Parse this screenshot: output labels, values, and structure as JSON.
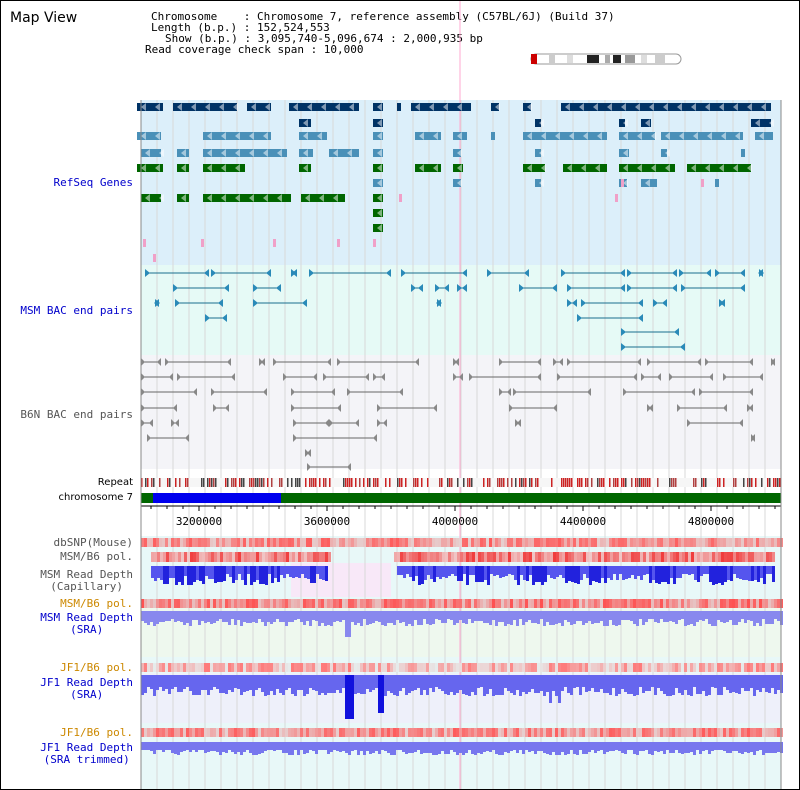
{
  "app": {
    "title": "Map View"
  },
  "info": {
    "chromosome": "Chromosome    : Chromosome 7, reference assembly (C57BL/6J) (Build 37)",
    "length": "Length (b.p.) : 152,524,553",
    "show": "Show (b.p.) : 3,095,740-5,096,674 : 2,000,935 bp",
    "coverage": "Read coverage check span : 10,000"
  },
  "tracks": {
    "refseq": "RefSeq Genes",
    "msm_bac": "MSM BAC end pairs",
    "b6n_bac": "B6N BAC end pairs",
    "repeat": "Repeat",
    "chromosome": "chromosome 7",
    "dbsnp": "dbSNP(Mouse)",
    "msm_b6_pol": "MSM/B6 pol.",
    "msm_depth_cap_1": "MSM Read Depth",
    "msm_depth_cap_2": "(Capillary)",
    "msm_b6_pol_2": "MSM/B6 pol.",
    "msm_depth_sra_1": "MSM Read Depth",
    "msm_depth_sra_2": "(SRA)",
    "jf1_pol": "JF1/B6 pol.",
    "jf1_depth_sra_1": "JF1 Read Depth",
    "jf1_depth_sra_2": "(SRA)",
    "jf1_pol_2": "JF1/B6 pol.",
    "jf1_depth_trim_1": "JF1 Read Depth",
    "jf1_depth_trim_2": "(SRA trimmed)"
  },
  "axis": {
    "ticks": [
      "3200000",
      "3600000",
      "4000000",
      "4400000",
      "4800000"
    ]
  },
  "colors": {
    "refseq_bg": "#dceffa",
    "msm_bg": "#e6faf6",
    "b6n_bg": "#f4f4f8",
    "gene_dark": "#003366",
    "gene_mid": "#4a90b8",
    "gene_green": "#006600",
    "bac_line": "#1a6e8e",
    "b6n_line": "#666666",
    "chrom_blue": "#0000ee",
    "chrom_green": "#006600",
    "depth_blue": "#3333ee",
    "pol_red": "#ee3333",
    "label_navy": "#0000cc",
    "label_olive": "#cc8800"
  }
}
